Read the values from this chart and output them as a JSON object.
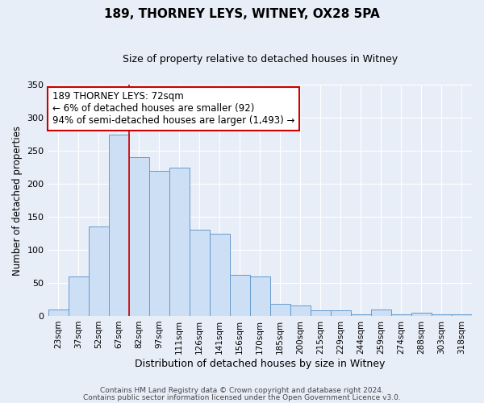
{
  "title": "189, THORNEY LEYS, WITNEY, OX28 5PA",
  "subtitle": "Size of property relative to detached houses in Witney",
  "xlabel": "Distribution of detached houses by size in Witney",
  "ylabel": "Number of detached properties",
  "bar_color": "#ccdff5",
  "bar_edge_color": "#6699cc",
  "categories": [
    "23sqm",
    "37sqm",
    "52sqm",
    "67sqm",
    "82sqm",
    "97sqm",
    "111sqm",
    "126sqm",
    "141sqm",
    "156sqm",
    "170sqm",
    "185sqm",
    "200sqm",
    "215sqm",
    "229sqm",
    "244sqm",
    "259sqm",
    "274sqm",
    "288sqm",
    "303sqm",
    "318sqm"
  ],
  "values": [
    10,
    60,
    135,
    275,
    240,
    220,
    225,
    130,
    125,
    62,
    60,
    18,
    16,
    8,
    8,
    3,
    10,
    3,
    5,
    2,
    3
  ],
  "ylim": [
    0,
    350
  ],
  "yticks": [
    0,
    50,
    100,
    150,
    200,
    250,
    300,
    350
  ],
  "vline_x": 3.5,
  "annotation_text": "189 THORNEY LEYS: 72sqm\n← 6% of detached houses are smaller (92)\n94% of semi-detached houses are larger (1,493) →",
  "annotation_box_color": "white",
  "annotation_box_edge_color": "#cc0000",
  "footer1": "Contains HM Land Registry data © Crown copyright and database right 2024.",
  "footer2": "Contains public sector information licensed under the Open Government Licence v3.0.",
  "background_color": "#e8eef8",
  "grid_color": "#ffffff",
  "title_fontsize": 11,
  "subtitle_fontsize": 9,
  "xlabel_fontsize": 9,
  "ylabel_fontsize": 8.5,
  "tick_fontsize": 7.5,
  "annotation_fontsize": 8.5,
  "footer_fontsize": 6.5
}
